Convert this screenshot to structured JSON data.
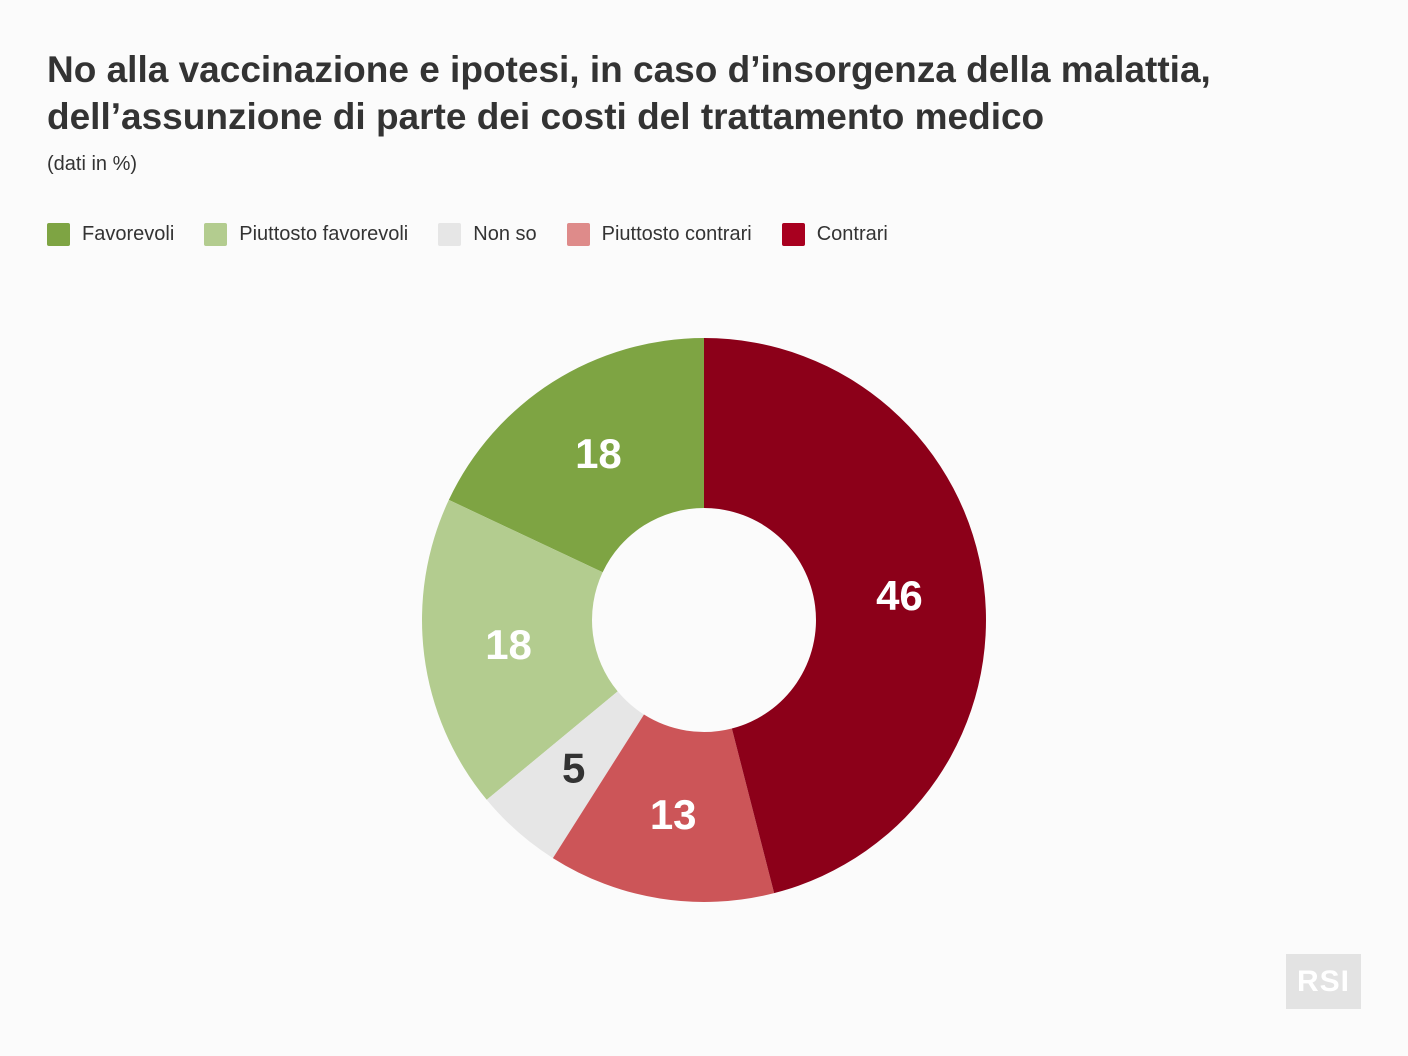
{
  "chart_data": {
    "type": "pie",
    "donut": true,
    "title_lines": [
      "No alla vaccinazione e ipotesi, in caso d’insorgenza della malattia,",
      "dell’assunzione di parte dei costi del trattamento medico"
    ],
    "subtitle": "(dati in %)",
    "legend_position": "top-left",
    "categories": [
      "Favorevoli",
      "Piuttosto favorevoli",
      "Non so",
      "Piuttosto contrari",
      "Contrari"
    ],
    "values": [
      18,
      18,
      5,
      13,
      46
    ],
    "colors": [
      "#7ea443",
      "#b3cc8f",
      "#e6e6e6",
      "#cc5558",
      "#8c0019"
    ],
    "legend_colors": [
      "#7ea443",
      "#b3cc8f",
      "#e6e6e6",
      "#de8b8a",
      "#a8001f"
    ],
    "label_colors": [
      "#ffffff",
      "#ffffff",
      "#333333",
      "#ffffff",
      "#ffffff"
    ]
  },
  "logo": {
    "text": "RSI"
  }
}
